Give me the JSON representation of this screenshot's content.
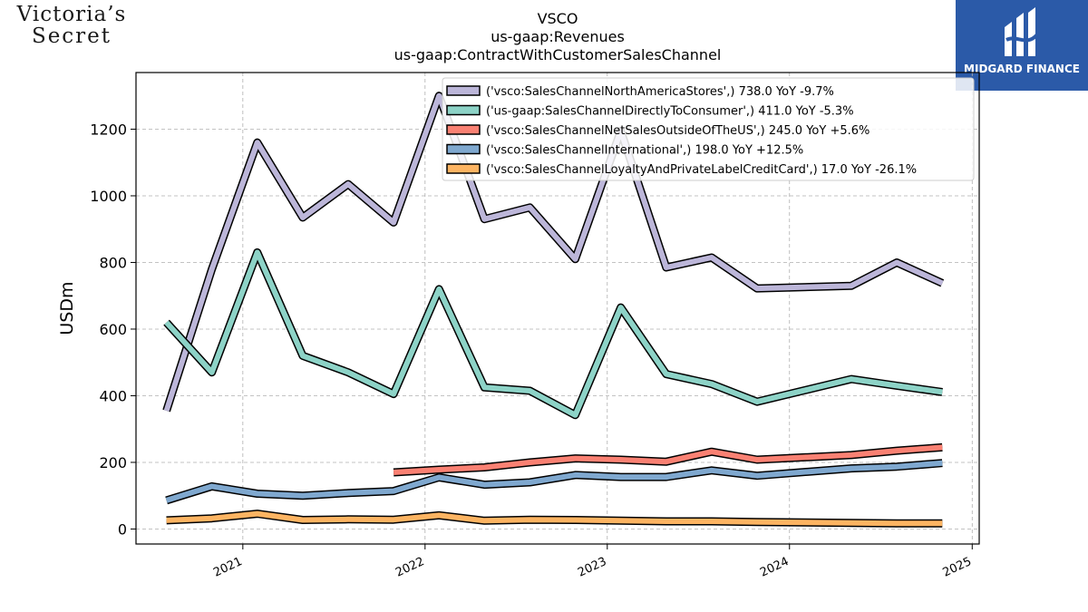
{
  "header": {
    "title_lines": [
      "VSCO",
      "us-gaap:Revenues",
      "us-gaap:ContractWithCustomerSalesChannel"
    ]
  },
  "brand_left": {
    "line1": "Victoria’s",
    "line2": "Secret"
  },
  "brand_right": {
    "text": "MIDGARD FINANCE",
    "color": "#2b5aa8"
  },
  "chart_data": {
    "type": "line",
    "title": "VSCO\nus-gaap:Revenues\nus-gaap:ContractWithCustomerSalesChannel",
    "ylabel": "USDm",
    "xlabel": "",
    "ylim": [
      -45,
      1370
    ],
    "xlim": [
      "2020-06-01",
      "2025-01-15"
    ],
    "yticks": [
      0,
      200,
      400,
      600,
      800,
      1000,
      1200
    ],
    "xticks": [
      "2021-01-01",
      "2022-01-01",
      "2023-01-01",
      "2024-01-01",
      "2025-01-01"
    ],
    "xtick_labels": [
      "2021",
      "2022",
      "2023",
      "2024",
      "2025"
    ],
    "grid": true,
    "legend_position": "top-right",
    "series": [
      {
        "name": "('vsco:SalesChannelNorthAmericaStores',) 738.0 YoY -9.7%",
        "color": "#bcb6d9",
        "points": [
          [
            "2020-08-01",
            355
          ],
          [
            "2020-10-31",
            780
          ],
          [
            "2021-01-30",
            1160
          ],
          [
            "2021-05-01",
            935
          ],
          [
            "2021-07-31",
            1035
          ],
          [
            "2021-10-30",
            920
          ],
          [
            "2022-01-29",
            1300
          ],
          [
            "2022-04-30",
            930
          ],
          [
            "2022-07-30",
            965
          ],
          [
            "2022-10-29",
            810
          ],
          [
            "2023-01-28",
            1195
          ],
          [
            "2023-04-29",
            785
          ],
          [
            "2023-07-29",
            815
          ],
          [
            "2023-10-28",
            722
          ],
          [
            "2024-05-04",
            730
          ],
          [
            "2024-08-03",
            800
          ],
          [
            "2024-11-02",
            738
          ]
        ]
      },
      {
        "name": "('us-gaap:SalesChannelDirectlyToConsumer',) 411.0 YoY -5.3%",
        "color": "#8dd3c7",
        "points": [
          [
            "2020-08-01",
            620
          ],
          [
            "2020-10-31",
            470
          ],
          [
            "2021-01-30",
            830
          ],
          [
            "2021-05-01",
            520
          ],
          [
            "2021-07-31",
            470
          ],
          [
            "2021-10-30",
            405
          ],
          [
            "2022-01-29",
            720
          ],
          [
            "2022-04-30",
            425
          ],
          [
            "2022-07-30",
            415
          ],
          [
            "2022-10-29",
            342
          ],
          [
            "2023-01-28",
            665
          ],
          [
            "2023-04-29",
            465
          ],
          [
            "2023-07-29",
            435
          ],
          [
            "2023-10-28",
            382
          ],
          [
            "2024-05-04",
            450
          ],
          [
            "2024-08-03",
            430
          ],
          [
            "2024-11-02",
            411
          ]
        ]
      },
      {
        "name": "('vsco:SalesChannelNetSalesOutsideOfTheUS',) 245.0 YoY +5.6%",
        "color": "#fa8173",
        "points": [
          [
            "2021-10-30",
            170
          ],
          [
            "2022-01-29",
            178
          ],
          [
            "2022-04-30",
            185
          ],
          [
            "2022-07-30",
            200
          ],
          [
            "2022-10-29",
            212
          ],
          [
            "2023-01-28",
            208
          ],
          [
            "2023-04-29",
            202
          ],
          [
            "2023-07-29",
            232
          ],
          [
            "2023-10-28",
            208
          ],
          [
            "2024-05-04",
            222
          ],
          [
            "2024-08-03",
            235
          ],
          [
            "2024-11-02",
            245
          ]
        ]
      },
      {
        "name": "('vsco:SalesChannelInternational',) 198.0 YoY +12.5%",
        "color": "#7fa8cf",
        "points": [
          [
            "2020-08-01",
            86
          ],
          [
            "2020-10-31",
            128
          ],
          [
            "2021-01-30",
            106
          ],
          [
            "2021-05-01",
            100
          ],
          [
            "2021-07-31",
            108
          ],
          [
            "2021-10-30",
            114
          ],
          [
            "2022-01-29",
            155
          ],
          [
            "2022-04-30",
            133
          ],
          [
            "2022-07-30",
            140
          ],
          [
            "2022-10-29",
            162
          ],
          [
            "2023-01-28",
            156
          ],
          [
            "2023-04-29",
            156
          ],
          [
            "2023-07-29",
            176
          ],
          [
            "2023-10-28",
            160
          ],
          [
            "2024-05-04",
            182
          ],
          [
            "2024-08-03",
            187
          ],
          [
            "2024-11-02",
            198
          ]
        ]
      },
      {
        "name": "('vsco:SalesChannelLoyaltyAndPrivateLabelCreditCard',) 17.0 YoY -26.1%",
        "color": "#fdb462",
        "points": [
          [
            "2020-08-01",
            26
          ],
          [
            "2020-10-31",
            32
          ],
          [
            "2021-01-30",
            46
          ],
          [
            "2021-05-01",
            27
          ],
          [
            "2021-07-31",
            29
          ],
          [
            "2021-10-30",
            28
          ],
          [
            "2022-01-29",
            41
          ],
          [
            "2022-04-30",
            25
          ],
          [
            "2022-07-30",
            28
          ],
          [
            "2022-10-29",
            27
          ],
          [
            "2023-01-28",
            25
          ],
          [
            "2023-04-29",
            23
          ],
          [
            "2023-07-29",
            23
          ],
          [
            "2023-10-28",
            21
          ],
          [
            "2024-05-04",
            18
          ],
          [
            "2024-08-03",
            17
          ],
          [
            "2024-11-02",
            17
          ]
        ]
      }
    ]
  }
}
